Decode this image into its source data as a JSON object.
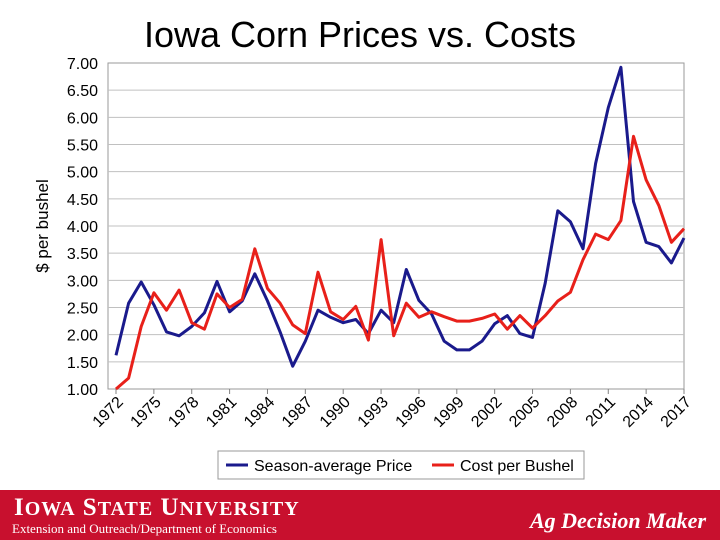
{
  "title": "Iowa Corn Prices vs. Costs",
  "chart_data": {
    "type": "line",
    "title": "Iowa Corn Prices vs. Costs",
    "xlabel": "",
    "ylabel": "$ per bushel",
    "ylim": [
      1.0,
      7.0
    ],
    "yticks": [
      "1.00",
      "1.50",
      "2.00",
      "2.50",
      "3.00",
      "3.50",
      "4.00",
      "4.50",
      "5.00",
      "5.50",
      "6.00",
      "6.50",
      "7.00"
    ],
    "xticks": [
      "1972",
      "1975",
      "1978",
      "1981",
      "1984",
      "1987",
      "1990",
      "1993",
      "1996",
      "1999",
      "2002",
      "2005",
      "2008",
      "2011",
      "2014",
      "2017"
    ],
    "x": [
      1972,
      1973,
      1974,
      1975,
      1976,
      1977,
      1978,
      1979,
      1980,
      1981,
      1982,
      1983,
      1984,
      1985,
      1986,
      1987,
      1988,
      1989,
      1990,
      1991,
      1992,
      1993,
      1994,
      1995,
      1996,
      1997,
      1998,
      1999,
      2000,
      2001,
      2002,
      2003,
      2004,
      2005,
      2006,
      2007,
      2008,
      2009,
      2010,
      2011,
      2012,
      2013,
      2014,
      2015,
      2016,
      2017
    ],
    "grid": true,
    "legend_position": "bottom",
    "series": [
      {
        "name": "Season-average Price",
        "color": "#1a1a8c",
        "values": [
          1.62,
          2.58,
          2.97,
          2.55,
          2.05,
          1.98,
          2.15,
          2.4,
          2.98,
          2.42,
          2.62,
          3.12,
          2.62,
          2.05,
          1.42,
          1.88,
          2.45,
          2.32,
          2.22,
          2.28,
          2.02,
          2.45,
          2.22,
          3.2,
          2.63,
          2.38,
          1.88,
          1.72,
          1.72,
          1.88,
          2.2,
          2.35,
          2.02,
          1.95,
          2.95,
          4.28,
          4.08,
          3.58,
          5.15,
          6.18,
          6.92,
          4.45,
          3.7,
          3.62,
          3.32,
          3.78
        ]
      },
      {
        "name": "Cost per Bushel",
        "color": "#e8201a",
        "values": [
          1.0,
          1.2,
          2.15,
          2.77,
          2.45,
          2.82,
          2.22,
          2.1,
          2.75,
          2.5,
          2.65,
          3.58,
          2.85,
          2.58,
          2.18,
          2.02,
          3.15,
          2.42,
          2.28,
          2.52,
          1.9,
          3.75,
          1.98,
          2.58,
          2.32,
          2.42,
          2.33,
          2.25,
          2.25,
          2.3,
          2.38,
          2.1,
          2.35,
          2.12,
          2.35,
          2.62,
          2.78,
          3.38,
          3.85,
          3.75,
          4.1,
          5.65,
          4.85,
          4.38,
          3.7,
          3.95
        ]
      }
    ]
  },
  "footer": {
    "university_first": "I",
    "university_rest": "OWA",
    "university_s": "S",
    "university_tate": "TATE",
    "university_u": "U",
    "university_niv": "NIVERSITY",
    "subtitle": "Extension and Outreach/Department of Economics",
    "brand": "Ag Decision Maker",
    "color": "#c8102e"
  }
}
